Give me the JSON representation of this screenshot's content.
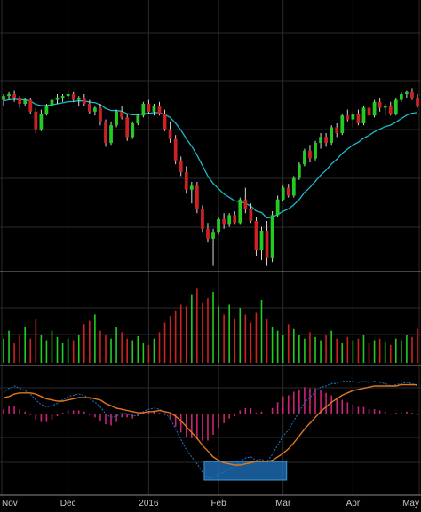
{
  "colors": {
    "background": "#000000",
    "grid": "#2a2a2a",
    "separator": "#8a8a8a",
    "up": "#22cc22",
    "down": "#cc2222",
    "wick": "#d8d8d8",
    "moving_average": "#1fb8c8",
    "macd_line": "#1d6fb8",
    "signal_line": "#e07820",
    "histogram": "#cc2277",
    "highlight_fill": "#1f6fb8",
    "highlight_border": "#3a9ad8",
    "axis_text": "#c8c8c8"
  },
  "chart_data": [
    {
      "type": "candlestick",
      "panel": "price",
      "x_axis_labels": [
        "Nov",
        "Dec",
        "2016",
        "Feb",
        "Mar",
        "Apr",
        "May"
      ],
      "title": "",
      "xlabel": "",
      "ylabel": "",
      "y_tick_labels": [],
      "ylim": [
        0,
        100
      ],
      "grid": true,
      "moving_average_shown": true,
      "candles": [
        {
          "o": 77,
          "h": 80,
          "l": 74,
          "c": 79
        },
        {
          "o": 79,
          "h": 81,
          "l": 77,
          "c": 80
        },
        {
          "o": 80,
          "h": 82,
          "l": 76,
          "c": 78
        },
        {
          "o": 78,
          "h": 79,
          "l": 73,
          "c": 75
        },
        {
          "o": 75,
          "h": 78,
          "l": 74,
          "c": 77
        },
        {
          "o": 77,
          "h": 78,
          "l": 70,
          "c": 71
        },
        {
          "o": 71,
          "h": 73,
          "l": 60,
          "c": 62
        },
        {
          "o": 62,
          "h": 72,
          "l": 61,
          "c": 70
        },
        {
          "o": 70,
          "h": 75,
          "l": 69,
          "c": 74
        },
        {
          "o": 74,
          "h": 78,
          "l": 73,
          "c": 77
        },
        {
          "o": 77,
          "h": 80,
          "l": 75,
          "c": 78
        },
        {
          "o": 78,
          "h": 80,
          "l": 76,
          "c": 79
        },
        {
          "o": 79,
          "h": 82,
          "l": 77,
          "c": 80
        },
        {
          "o": 80,
          "h": 81,
          "l": 76,
          "c": 77
        },
        {
          "o": 77,
          "h": 79,
          "l": 74,
          "c": 78
        },
        {
          "o": 78,
          "h": 80,
          "l": 74,
          "c": 75
        },
        {
          "o": 75,
          "h": 77,
          "l": 70,
          "c": 71
        },
        {
          "o": 71,
          "h": 74,
          "l": 69,
          "c": 73
        },
        {
          "o": 73,
          "h": 75,
          "l": 64,
          "c": 66
        },
        {
          "o": 66,
          "h": 67,
          "l": 53,
          "c": 55
        },
        {
          "o": 55,
          "h": 66,
          "l": 54,
          "c": 64
        },
        {
          "o": 64,
          "h": 72,
          "l": 63,
          "c": 71
        },
        {
          "o": 71,
          "h": 74,
          "l": 67,
          "c": 68
        },
        {
          "o": 68,
          "h": 70,
          "l": 56,
          "c": 58
        },
        {
          "o": 58,
          "h": 66,
          "l": 57,
          "c": 65
        },
        {
          "o": 65,
          "h": 70,
          "l": 64,
          "c": 69
        },
        {
          "o": 69,
          "h": 76,
          "l": 68,
          "c": 75
        },
        {
          "o": 75,
          "h": 77,
          "l": 70,
          "c": 71
        },
        {
          "o": 71,
          "h": 75,
          "l": 69,
          "c": 74
        },
        {
          "o": 74,
          "h": 76,
          "l": 69,
          "c": 70
        },
        {
          "o": 70,
          "h": 72,
          "l": 61,
          "c": 62
        },
        {
          "o": 62,
          "h": 66,
          "l": 55,
          "c": 57
        },
        {
          "o": 57,
          "h": 59,
          "l": 44,
          "c": 46
        },
        {
          "o": 46,
          "h": 48,
          "l": 38,
          "c": 40
        },
        {
          "o": 40,
          "h": 43,
          "l": 29,
          "c": 31
        },
        {
          "o": 31,
          "h": 35,
          "l": 24,
          "c": 33
        },
        {
          "o": 33,
          "h": 35,
          "l": 19,
          "c": 21
        },
        {
          "o": 21,
          "h": 23,
          "l": 9,
          "c": 11
        },
        {
          "o": 11,
          "h": 14,
          "l": 4,
          "c": 6
        },
        {
          "o": 6,
          "h": 11,
          "l": -8,
          "c": 9
        },
        {
          "o": 9,
          "h": 17,
          "l": 8,
          "c": 16
        },
        {
          "o": 16,
          "h": 19,
          "l": 11,
          "c": 13
        },
        {
          "o": 13,
          "h": 19,
          "l": 12,
          "c": 18
        },
        {
          "o": 18,
          "h": 20,
          "l": 13,
          "c": 14
        },
        {
          "o": 14,
          "h": 27,
          "l": 13,
          "c": 26
        },
        {
          "o": 26,
          "h": 32,
          "l": 19,
          "c": 21
        },
        {
          "o": 21,
          "h": 24,
          "l": 14,
          "c": 15
        },
        {
          "o": 15,
          "h": 17,
          "l": -3,
          "c": 0
        },
        {
          "o": 0,
          "h": 12,
          "l": -5,
          "c": 10
        },
        {
          "o": 10,
          "h": 15,
          "l": -8,
          "c": -4
        },
        {
          "o": -4,
          "h": 20,
          "l": -6,
          "c": 18
        },
        {
          "o": 18,
          "h": 28,
          "l": 17,
          "c": 26
        },
        {
          "o": 26,
          "h": 33,
          "l": 25,
          "c": 32
        },
        {
          "o": 32,
          "h": 34,
          "l": 27,
          "c": 28
        },
        {
          "o": 28,
          "h": 38,
          "l": 27,
          "c": 37
        },
        {
          "o": 37,
          "h": 45,
          "l": 36,
          "c": 44
        },
        {
          "o": 44,
          "h": 52,
          "l": 43,
          "c": 51
        },
        {
          "o": 51,
          "h": 54,
          "l": 45,
          "c": 47
        },
        {
          "o": 47,
          "h": 56,
          "l": 46,
          "c": 55
        },
        {
          "o": 55,
          "h": 60,
          "l": 52,
          "c": 58
        },
        {
          "o": 58,
          "h": 60,
          "l": 53,
          "c": 55
        },
        {
          "o": 55,
          "h": 64,
          "l": 54,
          "c": 63
        },
        {
          "o": 63,
          "h": 65,
          "l": 58,
          "c": 60
        },
        {
          "o": 60,
          "h": 70,
          "l": 59,
          "c": 69
        },
        {
          "o": 69,
          "h": 72,
          "l": 66,
          "c": 67
        },
        {
          "o": 67,
          "h": 71,
          "l": 63,
          "c": 70
        },
        {
          "o": 70,
          "h": 72,
          "l": 64,
          "c": 65
        },
        {
          "o": 65,
          "h": 74,
          "l": 64,
          "c": 73
        },
        {
          "o": 73,
          "h": 75,
          "l": 68,
          "c": 69
        },
        {
          "o": 69,
          "h": 77,
          "l": 68,
          "c": 76
        },
        {
          "o": 76,
          "h": 78,
          "l": 71,
          "c": 73
        },
        {
          "o": 73,
          "h": 75,
          "l": 69,
          "c": 74
        },
        {
          "o": 74,
          "h": 76,
          "l": 69,
          "c": 70
        },
        {
          "o": 70,
          "h": 78,
          "l": 69,
          "c": 77
        },
        {
          "o": 77,
          "h": 81,
          "l": 76,
          "c": 80
        },
        {
          "o": 80,
          "h": 82,
          "l": 78,
          "c": 81
        },
        {
          "o": 81,
          "h": 83,
          "l": 77,
          "c": 78
        },
        {
          "o": 78,
          "h": 80,
          "l": 73,
          "c": 74
        }
      ],
      "moving_average": [
        76.5,
        77.1,
        77.3,
        77.1,
        77.1,
        76.4,
        74.7,
        74.1,
        74.1,
        74.5,
        75.0,
        75.5,
        76.1,
        76.2,
        76.5,
        76.5,
        75.9,
        75.6,
        74.5,
        72.6,
        71.6,
        71.5,
        71.2,
        69.9,
        69.4,
        69.3,
        70.0,
        70.1,
        70.5,
        70.4,
        69.5,
        68.0,
        65.1,
        61.5,
        57.1,
        53.3,
        48.7,
        43.3,
        38.0,
        34.2,
        31.5,
        28.8,
        27.1,
        25.3,
        24.9,
        24.1,
        22.6,
        20.1,
        19.3,
        16.6,
        17.0,
        18.3,
        19.9,
        21.2,
        23.3,
        26.0,
        29.6,
        32.2,
        35.3,
        38.5,
        41.0,
        44.2,
        46.6,
        49.7,
        51.8,
        53.9,
        55.3,
        57.4,
        58.8,
        60.7,
        62.0,
        63.3,
        64.1,
        65.6,
        67.4,
        69.2,
        70.2,
        70.5
      ]
    },
    {
      "type": "bar",
      "panel": "volume",
      "title": "",
      "ylabel": "",
      "ylim": [
        0,
        100
      ],
      "values": [
        30,
        40,
        25,
        35,
        45,
        30,
        55,
        35,
        28,
        40,
        32,
        25,
        30,
        28,
        35,
        48,
        52,
        60,
        40,
        35,
        30,
        45,
        38,
        30,
        28,
        33,
        25,
        22,
        30,
        38,
        50,
        58,
        65,
        72,
        70,
        85,
        92,
        75,
        80,
        88,
        70,
        60,
        72,
        55,
        68,
        60,
        50,
        62,
        78,
        55,
        45,
        40,
        35,
        48,
        42,
        35,
        30,
        38,
        32,
        28,
        35,
        40,
        30,
        25,
        32,
        28,
        30,
        35,
        25,
        28,
        30,
        26,
        22,
        30,
        28,
        35,
        32,
        42
      ]
    },
    {
      "type": "line",
      "panel": "macd",
      "title": "",
      "ylabel": "",
      "ylim": [
        -60,
        40
      ],
      "highlight_range": [
        38,
        52
      ],
      "series": [
        {
          "values": [
            18,
            22,
            24,
            22,
            20,
            17,
            12,
            8,
            6,
            7,
            9,
            12,
            15,
            16,
            17,
            16,
            13,
            10,
            6,
            0,
            -3,
            -2,
            1,
            0,
            -2,
            -1,
            2,
            4,
            5,
            4,
            1,
            -4,
            -13,
            -22,
            -31,
            -37,
            -43,
            -50,
            -55,
            -55,
            -52,
            -50,
            -47,
            -46,
            -41,
            -38,
            -37,
            -40,
            -39,
            -41,
            -35,
            -27,
            -19,
            -14,
            -6,
            2,
            10,
            14,
            19,
            23,
            24,
            26,
            26,
            28,
            28,
            28,
            27,
            28,
            27,
            28,
            27,
            26,
            24,
            25,
            26,
            27,
            26,
            24
          ]
        },
        {
          "values": [
            14,
            15,
            17,
            18,
            18,
            18,
            17,
            15,
            13,
            12,
            11,
            11,
            12,
            13,
            14,
            14,
            14,
            13,
            12,
            9,
            7,
            5,
            4,
            3,
            2,
            1,
            1,
            2,
            2,
            3,
            2,
            1,
            -2,
            -6,
            -11,
            -16,
            -21,
            -27,
            -32,
            -37,
            -40,
            -42,
            -43,
            -44,
            -44,
            -43,
            -42,
            -41,
            -41,
            -41,
            -40,
            -37,
            -34,
            -30,
            -25,
            -19,
            -13,
            -8,
            -3,
            2,
            6,
            10,
            13,
            16,
            18,
            20,
            21,
            22,
            23,
            24,
            24,
            24,
            24,
            24,
            25,
            25,
            25,
            25
          ]
        }
      ],
      "histogram": [
        4,
        7,
        7,
        4,
        2,
        -1,
        -5,
        -7,
        -7,
        -5,
        -2,
        1,
        3,
        3,
        3,
        2,
        -1,
        -3,
        -6,
        -9,
        -10,
        -7,
        -3,
        -3,
        -4,
        -2,
        1,
        2,
        3,
        1,
        -1,
        -5,
        -11,
        -16,
        -20,
        -21,
        -22,
        -23,
        -23,
        -18,
        -12,
        -8,
        -4,
        -2,
        3,
        5,
        5,
        1,
        2,
        0,
        5,
        10,
        15,
        16,
        19,
        21,
        23,
        22,
        22,
        21,
        18,
        16,
        13,
        12,
        10,
        8,
        6,
        6,
        4,
        4,
        3,
        2,
        0,
        1,
        1,
        2,
        1,
        -1
      ]
    }
  ]
}
